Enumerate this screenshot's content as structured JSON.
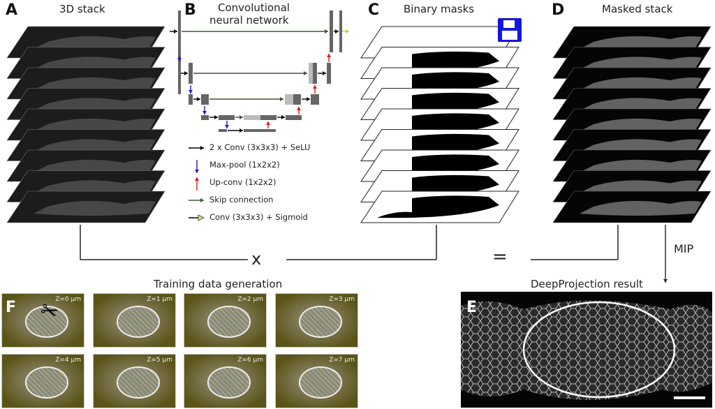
{
  "panels": {
    "A": {
      "label": "A",
      "title": "3D stack"
    },
    "B": {
      "label": "B",
      "title_line1": "Convolutional",
      "title_line2": "neural network"
    },
    "C": {
      "label": "C",
      "title": "Binary masks"
    },
    "D": {
      "label": "D",
      "title": "Masked stack"
    },
    "E": {
      "label": "E",
      "title": "DeepProjection result"
    },
    "F": {
      "label": "F",
      "title": "Training data generation"
    }
  },
  "legend": [
    {
      "text": "2 x Conv (3x3x3) + SeLU",
      "color": "#000000",
      "icon": "arrow-right-icon"
    },
    {
      "text": "Max-pool (1x2x2)",
      "color": "#1a1adf",
      "icon": "arrow-down-icon"
    },
    {
      "text": "Up-conv (1x2x2)",
      "color": "#e01515",
      "icon": "arrow-up-icon"
    },
    {
      "text": "Skip connection",
      "color": "#3a5a2a",
      "icon": "arrow-right-icon"
    },
    {
      "text": "Conv (3x3x3) + Sigmoid",
      "color": "#e8e860",
      "icon": "arrow-right-hollow-icon"
    }
  ],
  "operators": {
    "multiply": "x",
    "equals": "=",
    "mip": "MIP"
  },
  "slices": [
    "Z=0 µm",
    "Z=1 µm",
    "Z=2 µm",
    "Z=3 µm",
    "Z=4 µm",
    "Z=5 µm",
    "Z=6 µm",
    "Z=7 µm"
  ],
  "stack_layers": 9
}
